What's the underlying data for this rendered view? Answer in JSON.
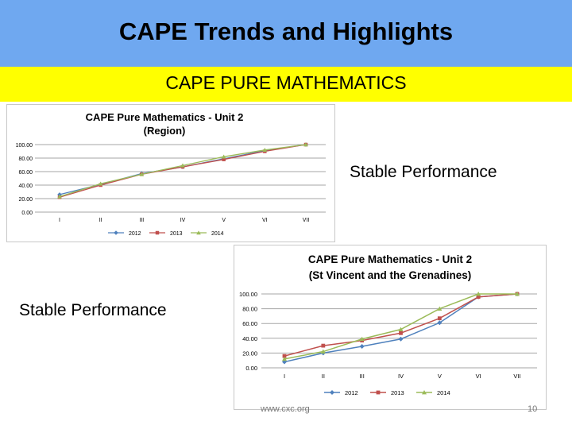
{
  "slide": {
    "title": "CAPE Trends and Highlights",
    "subtitle": "CAPE PURE MATHEMATICS",
    "note_top": "Stable Performance",
    "note_bottom": "Stable Performance",
    "footer_url": "www.cxc.org",
    "page_number": "10"
  },
  "colors": {
    "header": "#6fa8f0",
    "band": "#ffff00"
  },
  "chart_data": [
    {
      "type": "line",
      "title": "CAPE Pure Mathematics - Unit 2",
      "subtitle": "(Region)",
      "categories": [
        "I",
        "II",
        "III",
        "IV",
        "V",
        "VI",
        "VII"
      ],
      "y_ticks": [
        "0.00",
        "20.00",
        "40.00",
        "60.00",
        "80.00",
        "100.00"
      ],
      "ylim": [
        0,
        100
      ],
      "grid": true,
      "legend": "bottom",
      "series": [
        {
          "name": "2012",
          "color": "#4f81bd",
          "marker": "diamond",
          "values": [
            26,
            41,
            57,
            67,
            79,
            91,
            100
          ]
        },
        {
          "name": "2013",
          "color": "#c0504d",
          "marker": "square",
          "values": [
            22,
            40,
            56,
            67,
            78,
            90,
            100
          ]
        },
        {
          "name": "2014",
          "color": "#9bbb59",
          "marker": "triangle",
          "values": [
            23,
            42,
            56,
            69,
            82,
            92,
            100
          ]
        }
      ]
    },
    {
      "type": "line",
      "title": "CAPE Pure Mathematics - Unit 2",
      "subtitle": "(St Vincent and the Grenadines)",
      "categories": [
        "I",
        "II",
        "III",
        "IV",
        "V",
        "VI",
        "VII"
      ],
      "y_ticks": [
        "0.00",
        "20.00",
        "40.00",
        "60.00",
        "80.00",
        "100.00"
      ],
      "ylim": [
        0,
        100
      ],
      "grid": true,
      "legend": "bottom",
      "series": [
        {
          "name": "2012",
          "color": "#4f81bd",
          "marker": "diamond",
          "values": [
            8,
            20,
            29,
            39,
            61,
            96,
            100
          ]
        },
        {
          "name": "2013",
          "color": "#c0504d",
          "marker": "square",
          "values": [
            16,
            30,
            37,
            47,
            67,
            96,
            100
          ]
        },
        {
          "name": "2014",
          "color": "#9bbb59",
          "marker": "triangle",
          "values": [
            12,
            22,
            39,
            52,
            80,
            100,
            100
          ]
        }
      ]
    }
  ]
}
